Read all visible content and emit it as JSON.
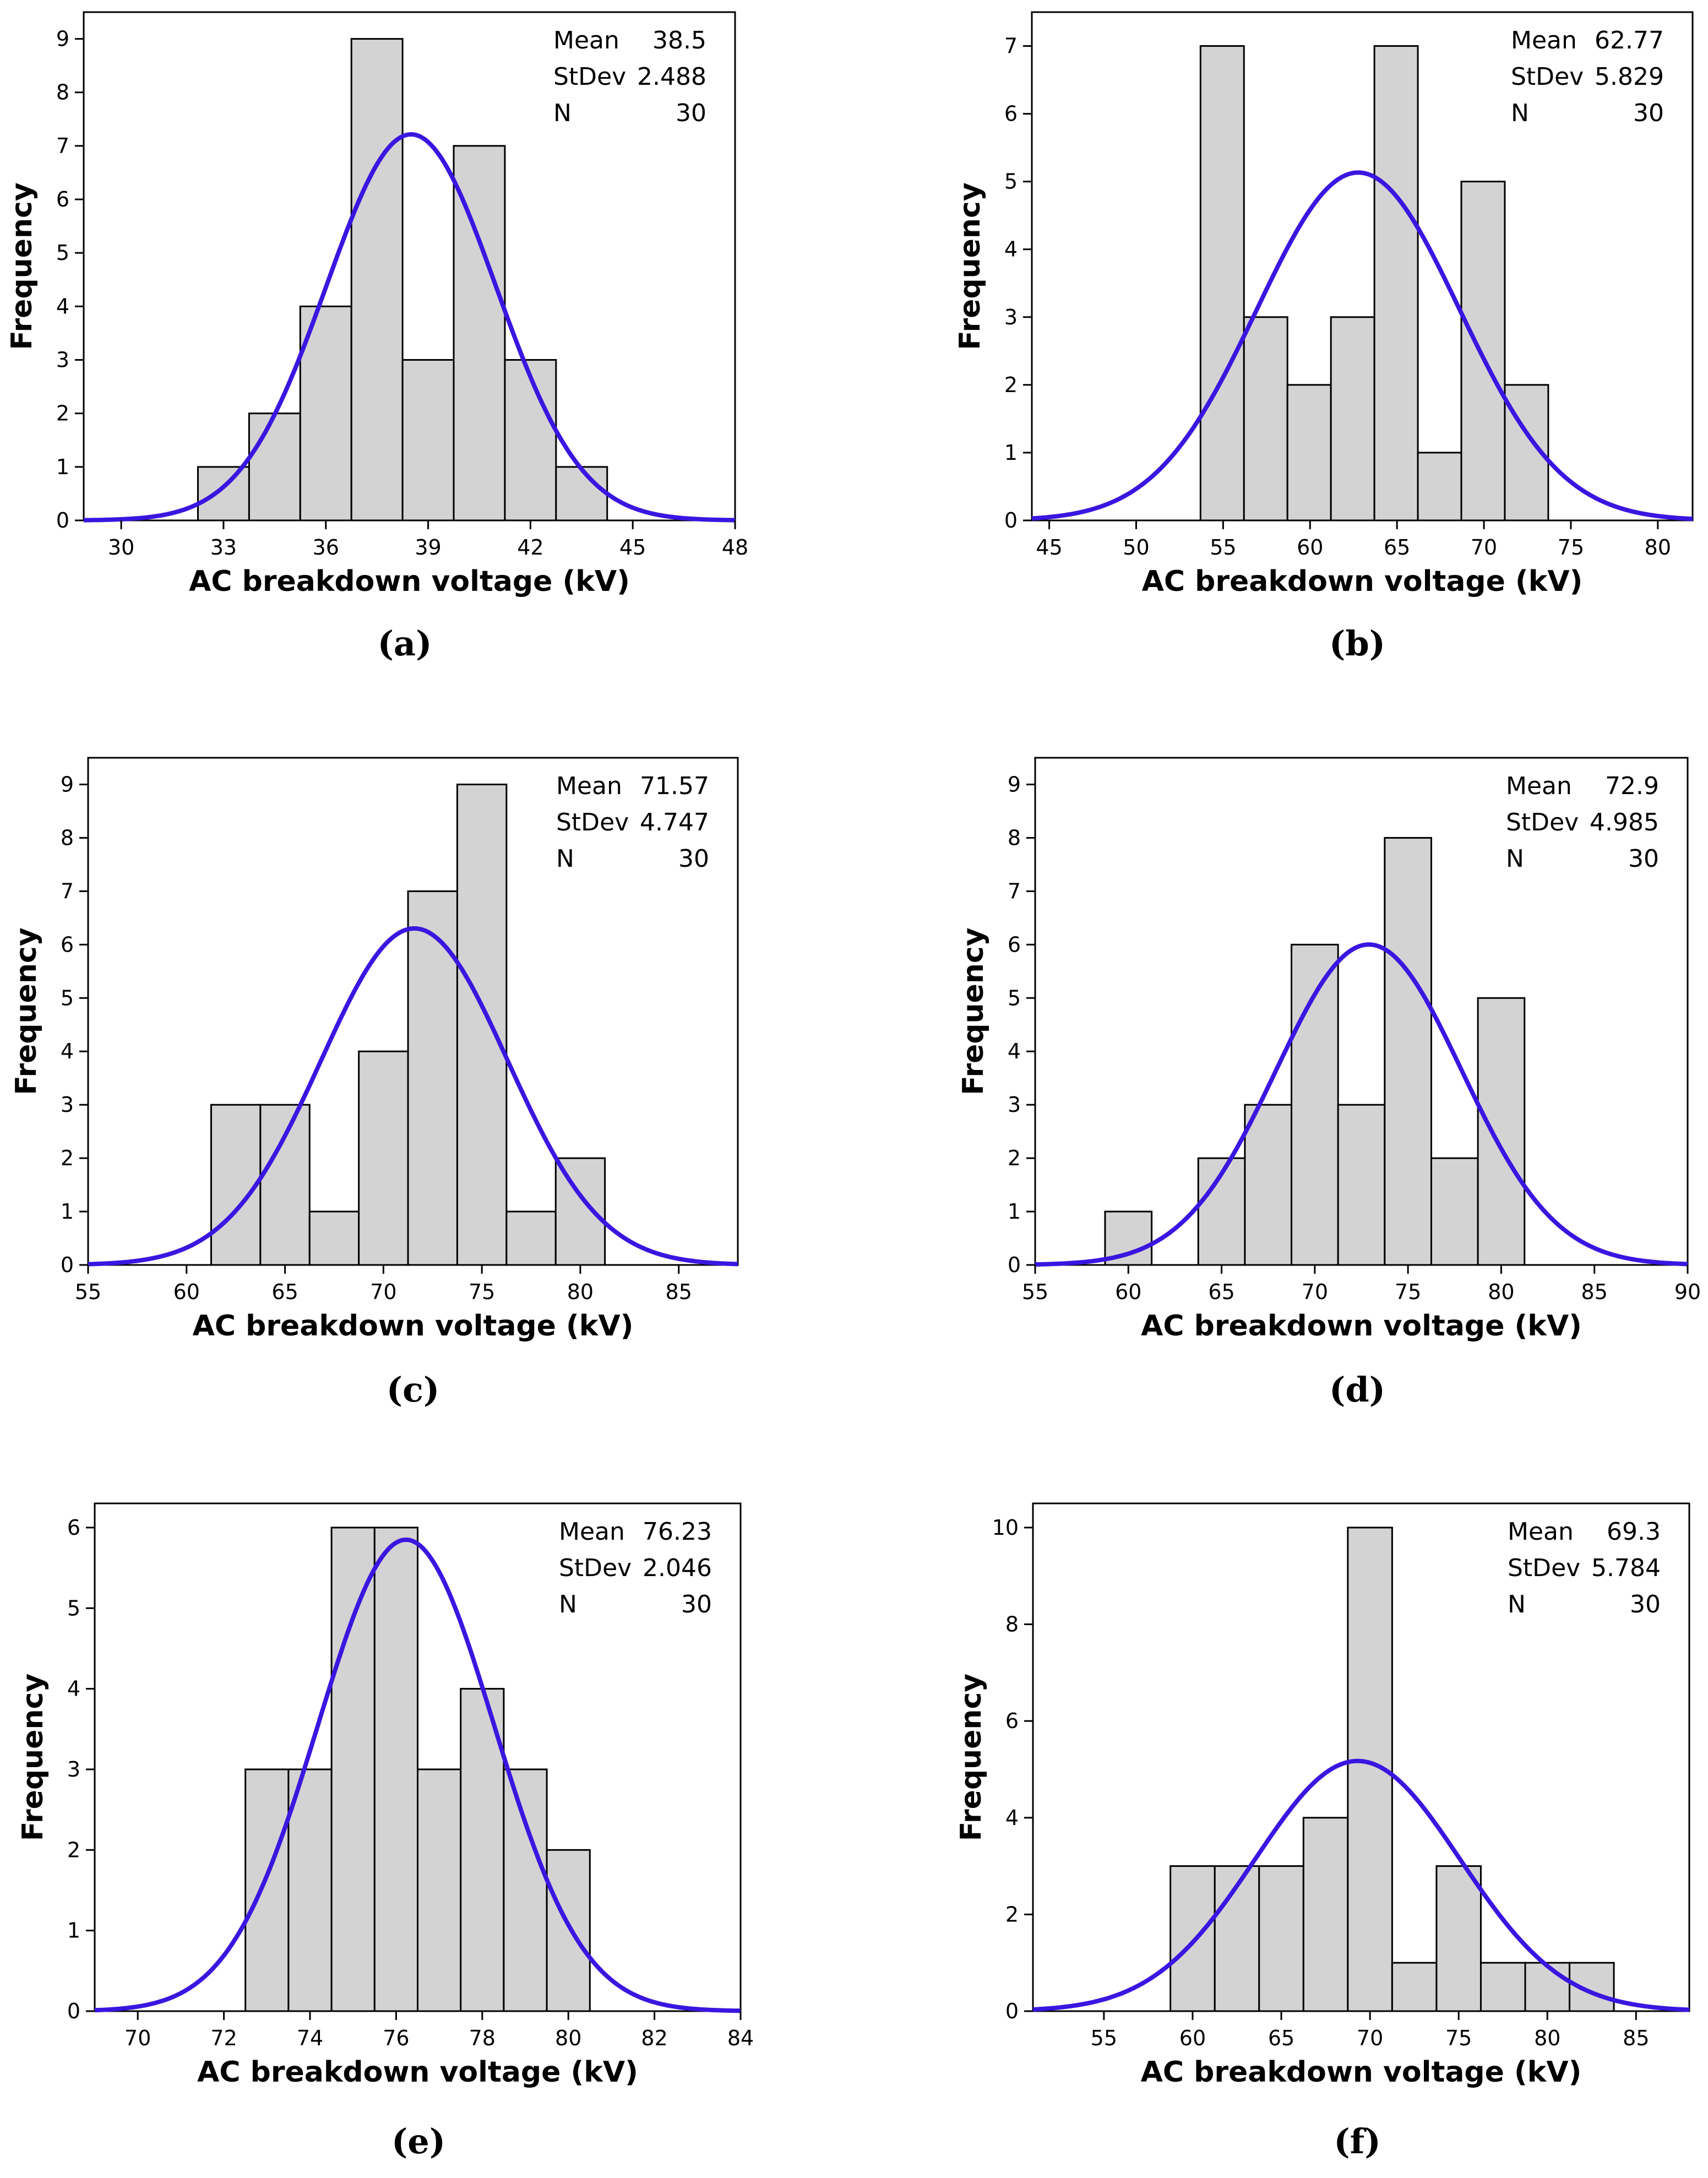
{
  "figure": {
    "curve_color": "#3a16e0",
    "bar_fill": "#d3d3d3",
    "bar_stroke": "#000000"
  },
  "chart_data": [
    {
      "type": "bar",
      "panel": "(a)",
      "caption": "(a)",
      "xlabel": "AC breakdown voltage (kV)",
      "ylabel": "Frequency",
      "xlim": [
        28.9,
        48
      ],
      "ylim": [
        0,
        9.5
      ],
      "xticks": [
        30,
        33,
        36,
        39,
        42,
        45,
        48
      ],
      "yticks": [
        0,
        1,
        2,
        3,
        4,
        5,
        6,
        7,
        8,
        9
      ],
      "bin_start": 32.25,
      "bin_width": 1.5,
      "counts": [
        1,
        2,
        4,
        9,
        3,
        7,
        3,
        1
      ],
      "stats": {
        "mean_label": "Mean",
        "mean": "38.5",
        "stdev_label": "StDev",
        "stdev": "2.488",
        "n_label": "N",
        "n": "30"
      },
      "normal_fit": {
        "mean": 38.5,
        "stdev": 2.488,
        "n": 30
      }
    },
    {
      "type": "bar",
      "panel": "(b)",
      "caption": "(b)",
      "xlabel": "AC breakdown voltage (kV)",
      "ylabel": "Frequency",
      "xlim": [
        44,
        82
      ],
      "ylim": [
        0,
        7.5
      ],
      "xticks": [
        45,
        50,
        55,
        60,
        65,
        70,
        75,
        80
      ],
      "yticks": [
        0,
        1,
        2,
        3,
        4,
        5,
        6,
        7
      ],
      "bin_start": 53.7,
      "bin_width": 2.5,
      "counts": [
        7,
        3,
        2,
        3,
        7,
        1,
        5,
        2
      ],
      "stats": {
        "mean_label": "Mean",
        "mean": "62.77",
        "stdev_label": "StDev",
        "stdev": "5.829",
        "n_label": "N",
        "n": "30"
      },
      "normal_fit": {
        "mean": 62.77,
        "stdev": 5.829,
        "n": 30
      }
    },
    {
      "type": "bar",
      "panel": "(c)",
      "caption": "(c)",
      "xlabel": "AC breakdown voltage (kV)",
      "ylabel": "Frequency",
      "xlim": [
        55,
        88
      ],
      "ylim": [
        0,
        9.5
      ],
      "xticks": [
        55,
        60,
        65,
        70,
        75,
        80,
        85
      ],
      "yticks": [
        0,
        1,
        2,
        3,
        4,
        5,
        6,
        7,
        8,
        9
      ],
      "bin_start": 61.25,
      "bin_width": 2.5,
      "counts": [
        3,
        3,
        1,
        4,
        7,
        9,
        1,
        2
      ],
      "stats": {
        "mean_label": "Mean",
        "mean": "71.57",
        "stdev_label": "StDev",
        "stdev": "4.747",
        "n_label": "N",
        "n": "30"
      },
      "normal_fit": {
        "mean": 71.57,
        "stdev": 4.747,
        "n": 30
      }
    },
    {
      "type": "bar",
      "panel": "(d)",
      "caption": "(d)",
      "xlabel": "AC breakdown voltage (kV)",
      "ylabel": "Frequency",
      "xlim": [
        55,
        90
      ],
      "ylim": [
        0,
        9.5
      ],
      "xticks": [
        55,
        60,
        65,
        70,
        75,
        80,
        85,
        90
      ],
      "yticks": [
        0,
        1,
        2,
        3,
        4,
        5,
        6,
        7,
        8,
        9
      ],
      "bin_start": 58.75,
      "bin_width": 2.5,
      "counts": [
        1,
        0,
        2,
        3,
        6,
        3,
        8,
        2,
        5
      ],
      "stats": {
        "mean_label": "Mean",
        "mean": "72.9",
        "stdev_label": "StDev",
        "stdev": "4.985",
        "n_label": "N",
        "n": "30"
      },
      "normal_fit": {
        "mean": 72.9,
        "stdev": 4.985,
        "n": 30
      }
    },
    {
      "type": "bar",
      "panel": "(e)",
      "caption": "(e)",
      "xlabel": "AC breakdown voltage (kV)",
      "ylabel": "Frequency",
      "xlim": [
        69,
        84
      ],
      "ylim": [
        0,
        6.3
      ],
      "xticks": [
        70,
        72,
        74,
        76,
        78,
        80,
        82,
        84
      ],
      "yticks": [
        0,
        1,
        2,
        3,
        4,
        5,
        6
      ],
      "bin_start": 72.5,
      "bin_width": 1,
      "counts": [
        3,
        3,
        6,
        6,
        3,
        4,
        3,
        2
      ],
      "stats": {
        "mean_label": "Mean",
        "mean": "76.23",
        "stdev_label": "StDev",
        "stdev": "2.046",
        "n_label": "N",
        "n": "30"
      },
      "normal_fit": {
        "mean": 76.23,
        "stdev": 2.046,
        "n": 30
      }
    },
    {
      "type": "bar",
      "panel": "(f)",
      "caption": "(f)",
      "xlabel": "AC breakdown voltage (kV)",
      "ylabel": "Frequency",
      "xlim": [
        51,
        88
      ],
      "ylim": [
        0,
        10.5
      ],
      "xticks": [
        55,
        60,
        65,
        70,
        75,
        80,
        85
      ],
      "yticks": [
        0,
        2,
        4,
        6,
        8,
        10
      ],
      "bin_start": 58.75,
      "bin_width": 2.5,
      "counts": [
        3,
        3,
        3,
        4,
        10,
        1,
        3,
        1,
        1,
        1
      ],
      "stats": {
        "mean_label": "Mean",
        "mean": "69.3",
        "stdev_label": "StDev",
        "stdev": "5.784",
        "n_label": "N",
        "n": "30"
      },
      "normal_fit": {
        "mean": 69.3,
        "stdev": 5.784,
        "n": 30
      }
    }
  ]
}
